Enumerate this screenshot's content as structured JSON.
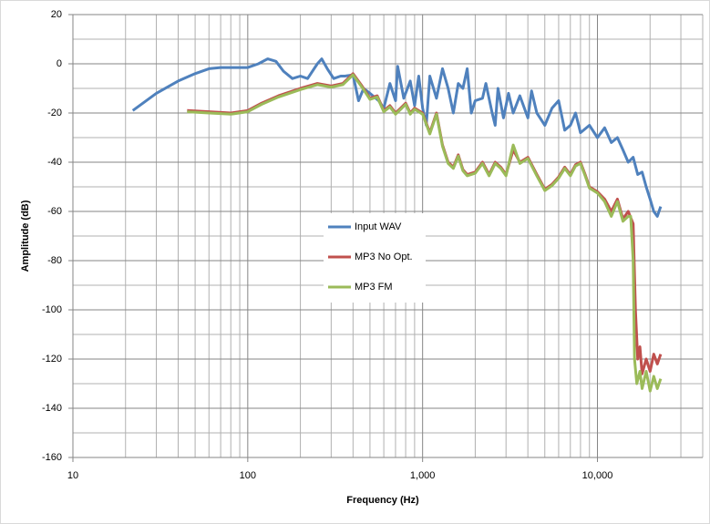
{
  "chart_data": {
    "type": "line",
    "x_label": "Frequency (Hz)",
    "y_label": "Amplitude (dB)",
    "xscale": "log",
    "grid": true,
    "xlim": [
      10,
      40000
    ],
    "ylim": [
      -160,
      20
    ],
    "xticks": [
      10,
      100,
      {
        "value": 1000,
        "label": "1,000"
      },
      {
        "value": 10000,
        "label": "10,000"
      }
    ],
    "xminor_ticks": [
      20,
      30,
      40,
      50,
      60,
      70,
      80,
      90,
      200,
      300,
      400,
      500,
      600,
      700,
      800,
      900,
      2000,
      3000,
      4000,
      5000,
      6000,
      7000,
      8000,
      9000,
      20000,
      30000,
      40000
    ],
    "yticks": [
      20,
      0,
      -20,
      -40,
      -60,
      -80,
      -100,
      -120,
      -140,
      -160
    ],
    "yminor_ticks": [
      10,
      -10,
      -30,
      -50,
      -70,
      -90,
      -110,
      -130,
      -150
    ],
    "legend": "center",
    "series": [
      {
        "name": "Input WAV",
        "color": "#4f81bd",
        "x": [
          22,
          30,
          40,
          50,
          60,
          70,
          100,
          115,
          130,
          145,
          160,
          180,
          200,
          220,
          250,
          265,
          285,
          310,
          340,
          360,
          400,
          430,
          460,
          500,
          560,
          600,
          650,
          700,
          720,
          780,
          850,
          900,
          950,
          1000,
          1050,
          1100,
          1200,
          1300,
          1400,
          1500,
          1600,
          1700,
          1800,
          1900,
          2000,
          2200,
          2300,
          2500,
          2600,
          2700,
          2900,
          3100,
          3300,
          3600,
          4000,
          4200,
          4500,
          5000,
          5500,
          6000,
          6500,
          7000,
          7500,
          8000,
          9000,
          10000,
          11000,
          12000,
          13000,
          14000,
          15000,
          16000,
          17000,
          18000,
          19000,
          20000,
          21000,
          22000,
          23000
        ],
        "values": [
          -19,
          -12,
          -7,
          -4,
          -2,
          -1.5,
          -1.5,
          0,
          2,
          1,
          -3,
          -6,
          -5,
          -6,
          0,
          2,
          -2,
          -6,
          -5,
          -5,
          -4.5,
          -15,
          -10,
          -12,
          -15,
          -18,
          -8,
          -15,
          -1,
          -14,
          -7,
          -17,
          -5,
          -18,
          -25,
          -5,
          -14,
          -2,
          -10,
          -20,
          -8,
          -10,
          -2,
          -20,
          -15,
          -14,
          -8,
          -20,
          -25,
          -10,
          -22,
          -12,
          -20,
          -13,
          -22,
          -11,
          -20,
          -25,
          -18,
          -15,
          -27,
          -25,
          -20,
          -28,
          -25,
          -30,
          -26,
          -32,
          -30,
          -35,
          -40,
          -38,
          -45,
          -44,
          -50,
          -55,
          -60,
          -62,
          -58
        ]
      },
      {
        "name": "MP3 No Opt.",
        "color": "#c0504d",
        "x": [
          45,
          60,
          80,
          100,
          120,
          150,
          200,
          250,
          300,
          350,
          400,
          450,
          500,
          550,
          600,
          650,
          700,
          750,
          800,
          850,
          900,
          1000,
          1100,
          1200,
          1300,
          1400,
          1500,
          1600,
          1700,
          1800,
          2000,
          2200,
          2400,
          2600,
          2800,
          3000,
          3300,
          3600,
          4000,
          4500,
          5000,
          5500,
          6000,
          6500,
          7000,
          7500,
          8000,
          8500,
          9000,
          10000,
          11000,
          12000,
          13000,
          14000,
          15000,
          16000,
          16500,
          17000,
          17500,
          18000,
          19000,
          20000,
          21000,
          22000,
          23000
        ],
        "values": [
          -19,
          -19.5,
          -20,
          -19,
          -16,
          -13,
          -10,
          -8,
          -9,
          -8,
          -4,
          -9,
          -14,
          -13,
          -19,
          -17,
          -20,
          -18,
          -16,
          -20,
          -18,
          -20,
          -28,
          -20,
          -33,
          -40,
          -42,
          -37,
          -43,
          -45,
          -44,
          -40,
          -45,
          -40,
          -42,
          -45,
          -35,
          -40,
          -38,
          -45,
          -51,
          -49,
          -46,
          -42,
          -45,
          -41,
          -40,
          -45,
          -50,
          -52,
          -55,
          -60,
          -55,
          -63,
          -60,
          -65,
          -100,
          -120,
          -115,
          -126,
          -120,
          -125,
          -118,
          -122,
          -118
        ]
      },
      {
        "name": "MP3 FM",
        "color": "#9bbb59",
        "x": [
          45,
          60,
          80,
          100,
          120,
          150,
          200,
          250,
          300,
          350,
          400,
          450,
          500,
          550,
          600,
          650,
          700,
          750,
          800,
          850,
          900,
          1000,
          1100,
          1200,
          1300,
          1400,
          1500,
          1600,
          1700,
          1800,
          2000,
          2200,
          2400,
          2600,
          2800,
          3000,
          3300,
          3600,
          4000,
          4500,
          5000,
          5500,
          6000,
          6500,
          7000,
          7500,
          8000,
          8500,
          9000,
          10000,
          11000,
          12000,
          13000,
          14000,
          15000,
          15500,
          16000,
          16300,
          16800,
          17500,
          18000,
          19000,
          20000,
          21000,
          22000,
          23000
        ],
        "values": [
          -19.5,
          -20,
          -20.5,
          -19.5,
          -16.5,
          -13.5,
          -10.5,
          -8.5,
          -9.5,
          -8.5,
          -4.5,
          -9.5,
          -14.5,
          -13.5,
          -19.5,
          -17.5,
          -20.5,
          -18.5,
          -16.5,
          -20.5,
          -18.5,
          -20.5,
          -28.5,
          -20.5,
          -33.5,
          -40.5,
          -42.5,
          -37.5,
          -43.5,
          -45.5,
          -44.5,
          -40.5,
          -45.5,
          -40.5,
          -42.5,
          -45.5,
          -33,
          -40.5,
          -38.5,
          -45.5,
          -51.5,
          -49.5,
          -46.5,
          -42.5,
          -45.5,
          -41.5,
          -40.5,
          -45.5,
          -50.5,
          -52.5,
          -56,
          -62,
          -56,
          -64,
          -62,
          -62,
          -80,
          -120,
          -130,
          -125,
          -132,
          -125,
          -133,
          -127,
          -132,
          -128
        ]
      }
    ]
  }
}
